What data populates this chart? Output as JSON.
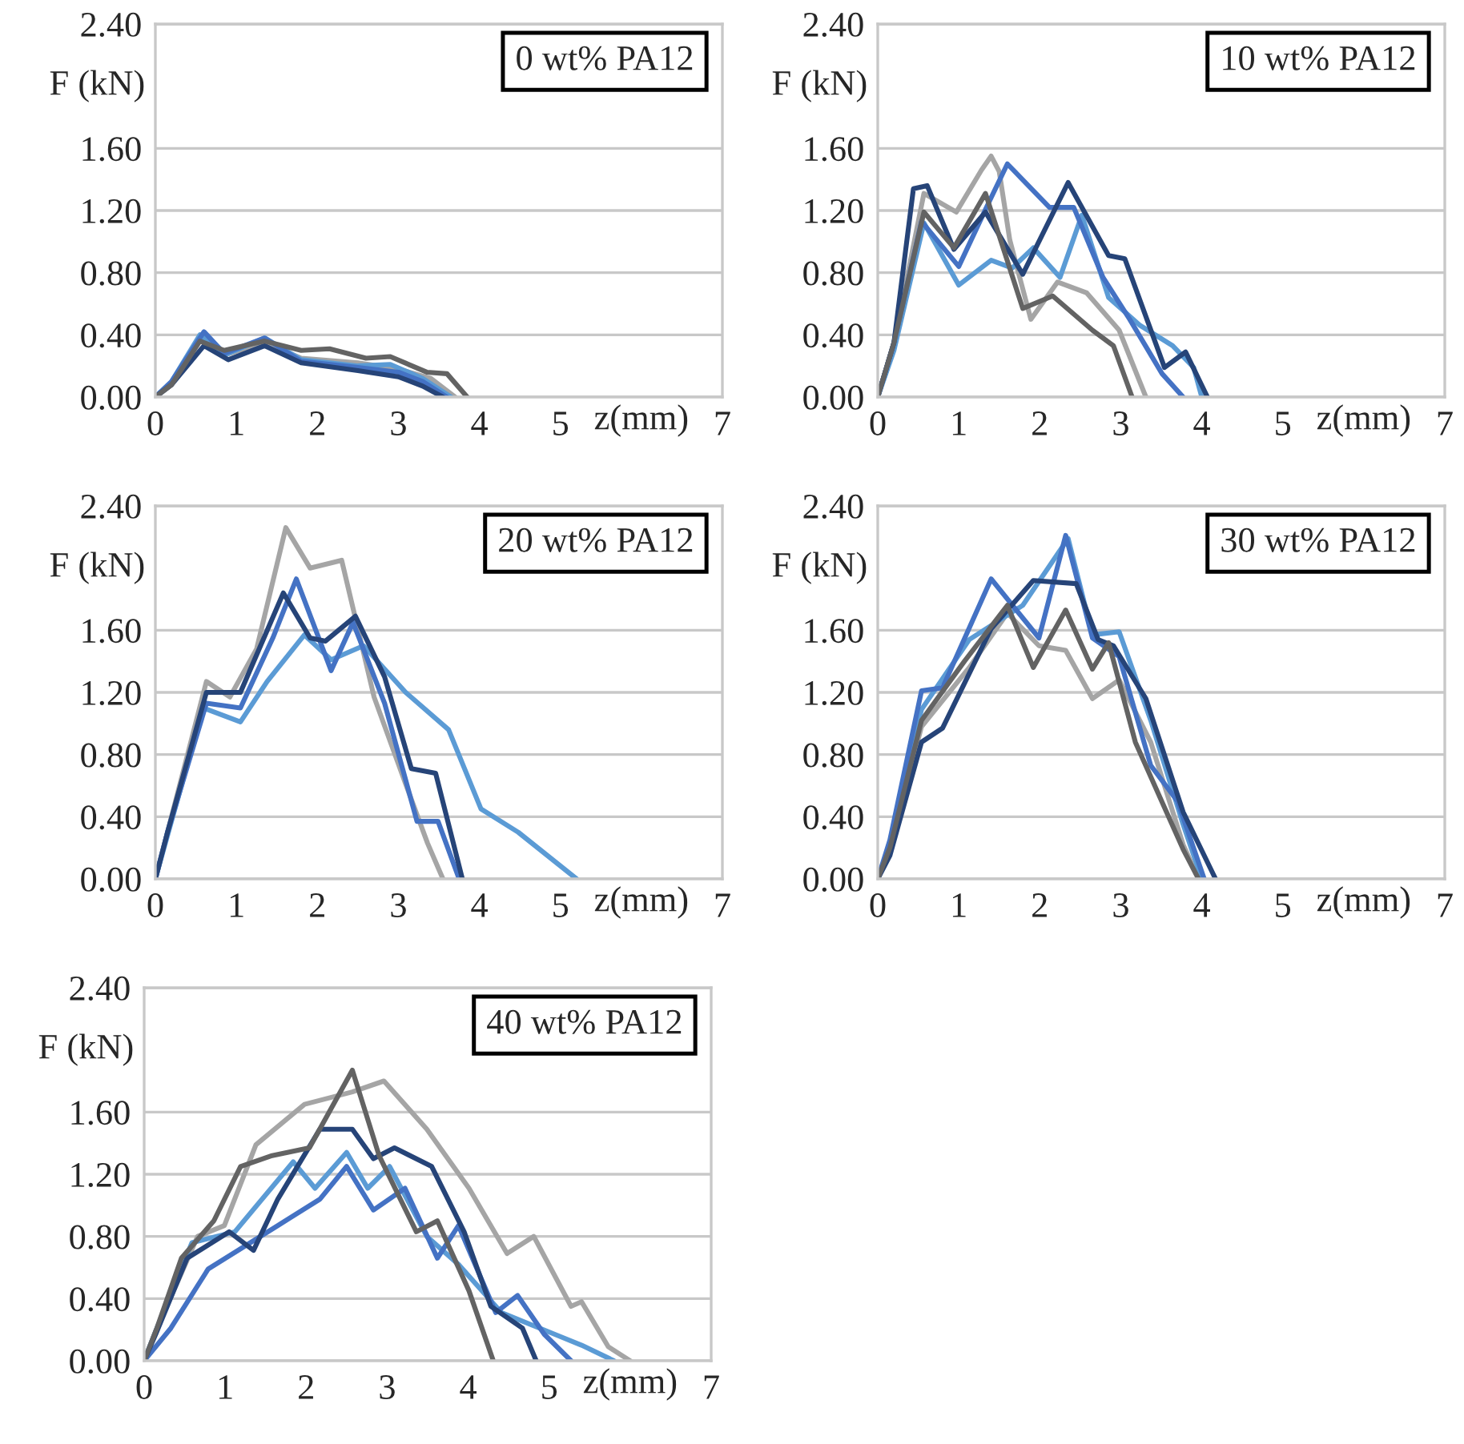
{
  "chart_data": [
    {
      "type": "line",
      "title": "0 wt% PA12",
      "xlabel": "z(mm)",
      "ylabel": "F (kN)",
      "xlim": [
        0,
        7
      ],
      "xticks": [
        0,
        1,
        2,
        3,
        4,
        5,
        7
      ],
      "ylim": [
        0,
        2.4
      ],
      "yticks": [
        {
          "value": 0,
          "label": "0.00"
        },
        {
          "value": 0.4,
          "label": "0.40"
        },
        {
          "value": 0.8,
          "label": "0.80"
        },
        {
          "value": 1.2,
          "label": "1.20"
        },
        {
          "value": 1.6,
          "label": "1.60"
        },
        {
          "value": 2.4,
          "label": "2.40"
        }
      ],
      "legend": false,
      "grid": "y",
      "marker": "none",
      "line_style": "solid",
      "series": [
        {
          "color": "#a5a5a5",
          "x": [
            0,
            0.2,
            0.55,
            0.85,
            1.35,
            1.8,
            2.5,
            3.0,
            3.4,
            3.7
          ],
          "values": [
            0,
            0.08,
            0.37,
            0.27,
            0.35,
            0.25,
            0.22,
            0.18,
            0.12,
            0
          ]
        },
        {
          "color": "#5b9bd5",
          "x": [
            0,
            0.2,
            0.55,
            0.85,
            1.35,
            1.8,
            2.5,
            2.9,
            3.3,
            3.65
          ],
          "values": [
            0,
            0.1,
            0.4,
            0.27,
            0.38,
            0.24,
            0.2,
            0.21,
            0.12,
            0
          ]
        },
        {
          "color": "#4472c4",
          "x": [
            0,
            0.2,
            0.6,
            0.85,
            1.35,
            1.8,
            2.5,
            3.0,
            3.3,
            3.6
          ],
          "values": [
            0,
            0.1,
            0.42,
            0.28,
            0.38,
            0.23,
            0.19,
            0.16,
            0.1,
            0
          ]
        },
        {
          "color": "#264478",
          "x": [
            0,
            0.2,
            0.6,
            0.9,
            1.35,
            1.8,
            2.5,
            3.0,
            3.3,
            3.55
          ],
          "values": [
            0,
            0.08,
            0.33,
            0.24,
            0.33,
            0.22,
            0.17,
            0.13,
            0.07,
            0
          ]
        },
        {
          "color": "#636363",
          "x": [
            0,
            0.2,
            0.55,
            0.85,
            1.35,
            1.8,
            2.15,
            2.6,
            2.9,
            3.35,
            3.6,
            3.85
          ],
          "values": [
            0,
            0.08,
            0.36,
            0.3,
            0.36,
            0.3,
            0.31,
            0.25,
            0.26,
            0.16,
            0.15,
            0
          ]
        }
      ]
    },
    {
      "type": "line",
      "title": "10 wt% PA12",
      "xlabel": "z(mm)",
      "ylabel": "F (kN)",
      "xlim": [
        0,
        7
      ],
      "xticks": [
        0,
        1,
        2,
        3,
        4,
        5,
        7
      ],
      "ylim": [
        0,
        2.4
      ],
      "yticks": [
        {
          "value": 0,
          "label": "0.00"
        },
        {
          "value": 0.4,
          "label": "0.40"
        },
        {
          "value": 0.8,
          "label": "0.80"
        },
        {
          "value": 1.2,
          "label": "1.20"
        },
        {
          "value": 1.6,
          "label": "1.60"
        },
        {
          "value": 2.4,
          "label": "2.40"
        }
      ],
      "legend": false,
      "grid": "y",
      "marker": "none",
      "line_style": "solid",
      "series": [
        {
          "color": "#a5a5a5",
          "x": [
            0,
            0.2,
            0.57,
            0.97,
            1.28,
            1.4,
            1.5,
            1.63,
            1.89,
            2.22,
            2.58,
            2.98,
            3.31
          ],
          "values": [
            0,
            0.35,
            1.31,
            1.19,
            1.46,
            1.55,
            1.45,
            1.01,
            0.5,
            0.74,
            0.67,
            0.43,
            0
          ]
        },
        {
          "color": "#5b9bd5",
          "x": [
            0,
            0.2,
            0.57,
            1.0,
            1.4,
            1.66,
            1.92,
            2.25,
            2.52,
            2.85,
            3.24,
            3.64,
            3.9,
            4.0
          ],
          "values": [
            0,
            0.3,
            1.12,
            0.72,
            0.88,
            0.83,
            0.96,
            0.77,
            1.17,
            0.64,
            0.46,
            0.33,
            0.19,
            0
          ]
        },
        {
          "color": "#4472c4",
          "x": [
            0,
            0.2,
            0.54,
            1.0,
            1.36,
            1.6,
            2.12,
            2.42,
            2.78,
            3.11,
            3.51,
            3.77
          ],
          "values": [
            0,
            0.35,
            1.13,
            0.84,
            1.24,
            1.5,
            1.22,
            1.22,
            0.77,
            0.5,
            0.15,
            0
          ]
        },
        {
          "color": "#264478",
          "x": [
            0,
            0.2,
            0.44,
            0.61,
            0.94,
            1.33,
            1.79,
            2.35,
            2.85,
            3.05,
            3.54,
            3.8,
            4.07
          ],
          "values": [
            0,
            0.35,
            1.34,
            1.36,
            0.95,
            1.19,
            0.79,
            1.38,
            0.91,
            0.89,
            0.19,
            0.29,
            0
          ]
        },
        {
          "color": "#636363",
          "x": [
            0,
            0.2,
            0.57,
            0.94,
            1.33,
            1.79,
            2.16,
            2.65,
            2.91,
            3.14
          ],
          "values": [
            0,
            0.35,
            1.19,
            0.96,
            1.31,
            0.57,
            0.65,
            0.43,
            0.33,
            0
          ]
        }
      ]
    },
    {
      "type": "line",
      "title": "20 wt% PA12",
      "xlabel": "z(mm)",
      "ylabel": "F (kN)",
      "xlim": [
        0,
        7
      ],
      "xticks": [
        0,
        1,
        2,
        3,
        4,
        5,
        7
      ],
      "ylim": [
        0,
        2.4
      ],
      "yticks": [
        {
          "value": 0,
          "label": "0.00"
        },
        {
          "value": 0.4,
          "label": "0.40"
        },
        {
          "value": 0.8,
          "label": "0.80"
        },
        {
          "value": 1.2,
          "label": "1.20"
        },
        {
          "value": 1.6,
          "label": "1.60"
        },
        {
          "value": 2.4,
          "label": "2.40"
        }
      ],
      "legend": false,
      "grid": "y",
      "marker": "none",
      "line_style": "solid",
      "series": [
        {
          "color": "#a5a5a5",
          "x": [
            0,
            0.15,
            0.63,
            0.92,
            1.25,
            1.61,
            1.91,
            2.3,
            2.7,
            3.09,
            3.36,
            3.55
          ],
          "values": [
            0,
            0.3,
            1.27,
            1.17,
            1.48,
            2.26,
            2.0,
            2.05,
            1.17,
            0.61,
            0.23,
            0
          ]
        },
        {
          "color": "#5b9bd5",
          "x": [
            0,
            0.15,
            0.59,
            1.05,
            1.38,
            1.84,
            2.17,
            2.57,
            3.09,
            3.62,
            4.02,
            4.48,
            5.2
          ],
          "values": [
            0,
            0.28,
            1.1,
            1.01,
            1.27,
            1.57,
            1.41,
            1.5,
            1.2,
            0.96,
            0.45,
            0.3,
            0
          ]
        },
        {
          "color": "#4472c4",
          "x": [
            0,
            0.15,
            0.63,
            1.05,
            1.45,
            1.74,
            2.17,
            2.44,
            2.83,
            3.23,
            3.49,
            3.75
          ],
          "values": [
            0,
            0.3,
            1.13,
            1.1,
            1.55,
            1.93,
            1.34,
            1.65,
            1.13,
            0.37,
            0.37,
            0
          ]
        },
        {
          "color": "#264478",
          "x": [
            0,
            0.15,
            0.63,
            1.05,
            1.58,
            1.91,
            2.1,
            2.47,
            2.83,
            3.16,
            3.46,
            3.79
          ],
          "values": [
            0,
            0.3,
            1.2,
            1.2,
            1.84,
            1.55,
            1.53,
            1.69,
            1.3,
            0.71,
            0.68,
            0
          ]
        }
      ]
    },
    {
      "type": "line",
      "title": "30 wt% PA12",
      "xlabel": "z(mm)",
      "ylabel": "F (kN)",
      "xlim": [
        0,
        7
      ],
      "xticks": [
        0,
        1,
        2,
        3,
        4,
        5,
        7
      ],
      "ylim": [
        0,
        2.4
      ],
      "yticks": [
        {
          "value": 0,
          "label": "0.00"
        },
        {
          "value": 0.4,
          "label": "0.40"
        },
        {
          "value": 0.8,
          "label": "0.80"
        },
        {
          "value": 1.2,
          "label": "1.20"
        },
        {
          "value": 1.6,
          "label": "1.60"
        },
        {
          "value": 2.4,
          "label": "2.40"
        }
      ],
      "legend": false,
      "grid": "y",
      "marker": "none",
      "line_style": "solid",
      "series": [
        {
          "color": "#a5a5a5",
          "x": [
            0,
            0.15,
            0.54,
            1.13,
            1.6,
            1.99,
            2.32,
            2.65,
            2.98,
            3.37,
            3.77,
            3.96
          ],
          "values": [
            0,
            0.2,
            0.98,
            1.36,
            1.71,
            1.5,
            1.47,
            1.16,
            1.28,
            0.88,
            0.22,
            0
          ]
        },
        {
          "color": "#5b9bd5",
          "x": [
            0,
            0.15,
            0.54,
            1.13,
            1.79,
            2.35,
            2.65,
            2.98,
            3.37,
            3.77,
            4.0
          ],
          "values": [
            0,
            0.2,
            1.09,
            1.54,
            1.76,
            2.19,
            1.57,
            1.59,
            1.02,
            0.35,
            0
          ]
        },
        {
          "color": "#4472c4",
          "x": [
            0,
            0.15,
            0.54,
            0.8,
            1.4,
            1.99,
            2.32,
            2.65,
            2.98,
            3.37,
            3.7,
            4.03
          ],
          "values": [
            0,
            0.25,
            1.21,
            1.23,
            1.93,
            1.55,
            2.21,
            1.55,
            1.43,
            0.73,
            0.5,
            0
          ]
        },
        {
          "color": "#264478",
          "x": [
            0,
            0.15,
            0.54,
            0.8,
            1.4,
            1.92,
            2.45,
            2.72,
            2.91,
            3.31,
            3.77,
            4.17
          ],
          "values": [
            0,
            0.15,
            0.88,
            0.97,
            1.61,
            1.92,
            1.9,
            1.54,
            1.5,
            1.16,
            0.43,
            0
          ]
        },
        {
          "color": "#636363",
          "x": [
            0,
            0.15,
            0.54,
            1.07,
            1.6,
            1.92,
            2.32,
            2.65,
            2.85,
            3.18,
            3.77,
            3.96
          ],
          "values": [
            0,
            0.2,
            1.02,
            1.4,
            1.76,
            1.36,
            1.73,
            1.35,
            1.52,
            0.88,
            0.19,
            0
          ]
        }
      ]
    },
    {
      "type": "line",
      "title": "40 wt% PA12",
      "xlabel": "z(mm)",
      "ylabel": "F (kN)",
      "xlim": [
        0,
        7
      ],
      "xticks": [
        0,
        1,
        2,
        3,
        4,
        5,
        7
      ],
      "ylim": [
        0,
        2.4
      ],
      "yticks": [
        {
          "value": 0,
          "label": "0.00"
        },
        {
          "value": 0.4,
          "label": "0.40"
        },
        {
          "value": 0.8,
          "label": "0.80"
        },
        {
          "value": 1.2,
          "label": "1.20"
        },
        {
          "value": 1.6,
          "label": "1.60"
        },
        {
          "value": 2.4,
          "label": "2.40"
        }
      ],
      "legend": false,
      "grid": "y",
      "marker": "none",
      "line_style": "solid",
      "series": [
        {
          "color": "#a5a5a5",
          "x": [
            0,
            0.15,
            0.66,
            0.99,
            1.38,
            1.98,
            2.57,
            2.96,
            3.49,
            4.01,
            4.48,
            4.81,
            5.27,
            5.4,
            5.73,
            6.0
          ],
          "values": [
            0,
            0.2,
            0.8,
            0.87,
            1.39,
            1.65,
            1.73,
            1.8,
            1.49,
            1.11,
            0.69,
            0.8,
            0.35,
            0.38,
            0.09,
            0
          ]
        },
        {
          "color": "#5b9bd5",
          "x": [
            0,
            0.15,
            0.59,
            1.12,
            1.84,
            2.11,
            2.5,
            2.76,
            3.03,
            3.49,
            3.88,
            4.41,
            5.07,
            5.4,
            5.8
          ],
          "values": [
            0,
            0.2,
            0.76,
            0.83,
            1.28,
            1.11,
            1.34,
            1.11,
            1.25,
            0.8,
            0.62,
            0.31,
            0.17,
            0.1,
            0
          ]
        },
        {
          "color": "#4472c4",
          "x": [
            0,
            0.33,
            0.79,
            1.65,
            2.17,
            2.5,
            2.83,
            3.22,
            3.62,
            3.88,
            4.34,
            4.61,
            4.94,
            5.27
          ],
          "values": [
            0,
            0.21,
            0.59,
            0.87,
            1.04,
            1.25,
            0.97,
            1.11,
            0.66,
            0.87,
            0.31,
            0.42,
            0.17,
            0
          ]
        },
        {
          "color": "#264478",
          "x": [
            0,
            0.15,
            0.53,
            1.05,
            1.35,
            1.65,
            2.17,
            2.57,
            2.83,
            3.09,
            3.55,
            3.95,
            4.28,
            4.67,
            4.84
          ],
          "values": [
            0,
            0.18,
            0.66,
            0.83,
            0.71,
            1.04,
            1.49,
            1.49,
            1.3,
            1.37,
            1.25,
            0.83,
            0.35,
            0.21,
            0
          ]
        },
        {
          "color": "#636363",
          "x": [
            0,
            0.15,
            0.46,
            0.86,
            1.19,
            1.58,
            2.04,
            2.57,
            2.9,
            3.36,
            3.62,
            4.01,
            4.31
          ],
          "values": [
            0,
            0.2,
            0.66,
            0.9,
            1.25,
            1.32,
            1.37,
            1.87,
            1.32,
            0.83,
            0.9,
            0.45,
            0
          ]
        }
      ]
    }
  ]
}
